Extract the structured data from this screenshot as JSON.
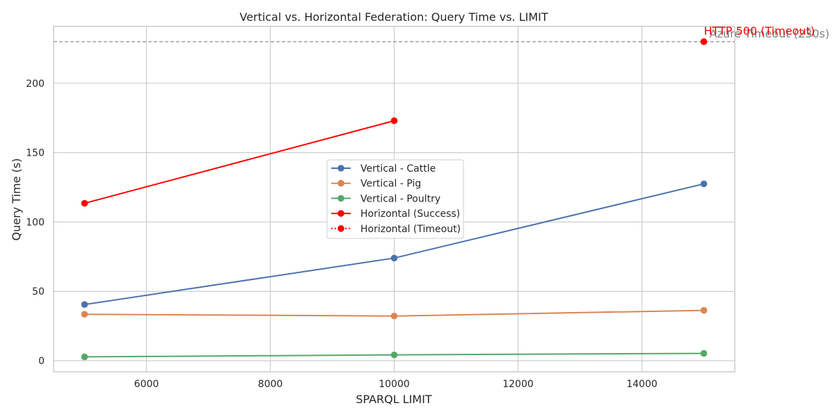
{
  "chart_data": {
    "type": "line",
    "title": "Vertical vs. Horizontal Federation: Query Time vs. LIMIT",
    "xlabel": "SPARQL LIMIT",
    "ylabel": "Query Time (s)",
    "xlim": [
      4500,
      15500
    ],
    "ylim": [
      -8,
      241
    ],
    "xticks": [
      6000,
      8000,
      10000,
      12000,
      14000
    ],
    "yticks": [
      0,
      50,
      100,
      150,
      200
    ],
    "grid": true,
    "legend_position": "center",
    "series": [
      {
        "name": "Vertical - Cattle",
        "color": "#4c72b0",
        "style": "solid",
        "x": [
          5000,
          10000,
          15000
        ],
        "y": [
          40.5,
          74,
          127.5
        ]
      },
      {
        "name": "Vertical - Pig",
        "color": "#dd8452",
        "style": "solid",
        "x": [
          5000,
          10000,
          15000
        ],
        "y": [
          33.5,
          32.2,
          36.3
        ]
      },
      {
        "name": "Vertical - Poultry",
        "color": "#55a868",
        "style": "solid",
        "x": [
          5000,
          10000,
          15000
        ],
        "y": [
          2.8,
          4.2,
          5.3
        ]
      },
      {
        "name": "Horizontal (Success)",
        "color": "#ff0000",
        "style": "solid",
        "x": [
          5000,
          10000
        ],
        "y": [
          113.5,
          173
        ]
      },
      {
        "name": "Horizontal (Timeout)",
        "color": "#ff0000",
        "style": "dotted",
        "x": [
          15000
        ],
        "y": [
          230
        ]
      }
    ],
    "reference_line": {
      "y": 230,
      "label": "Azure Timeout (230s)",
      "color": "#808080"
    },
    "annotations": [
      {
        "text": "HTTP 500 (Timeout)",
        "x": 15000,
        "y": 230,
        "color": "#ff0000"
      }
    ]
  }
}
